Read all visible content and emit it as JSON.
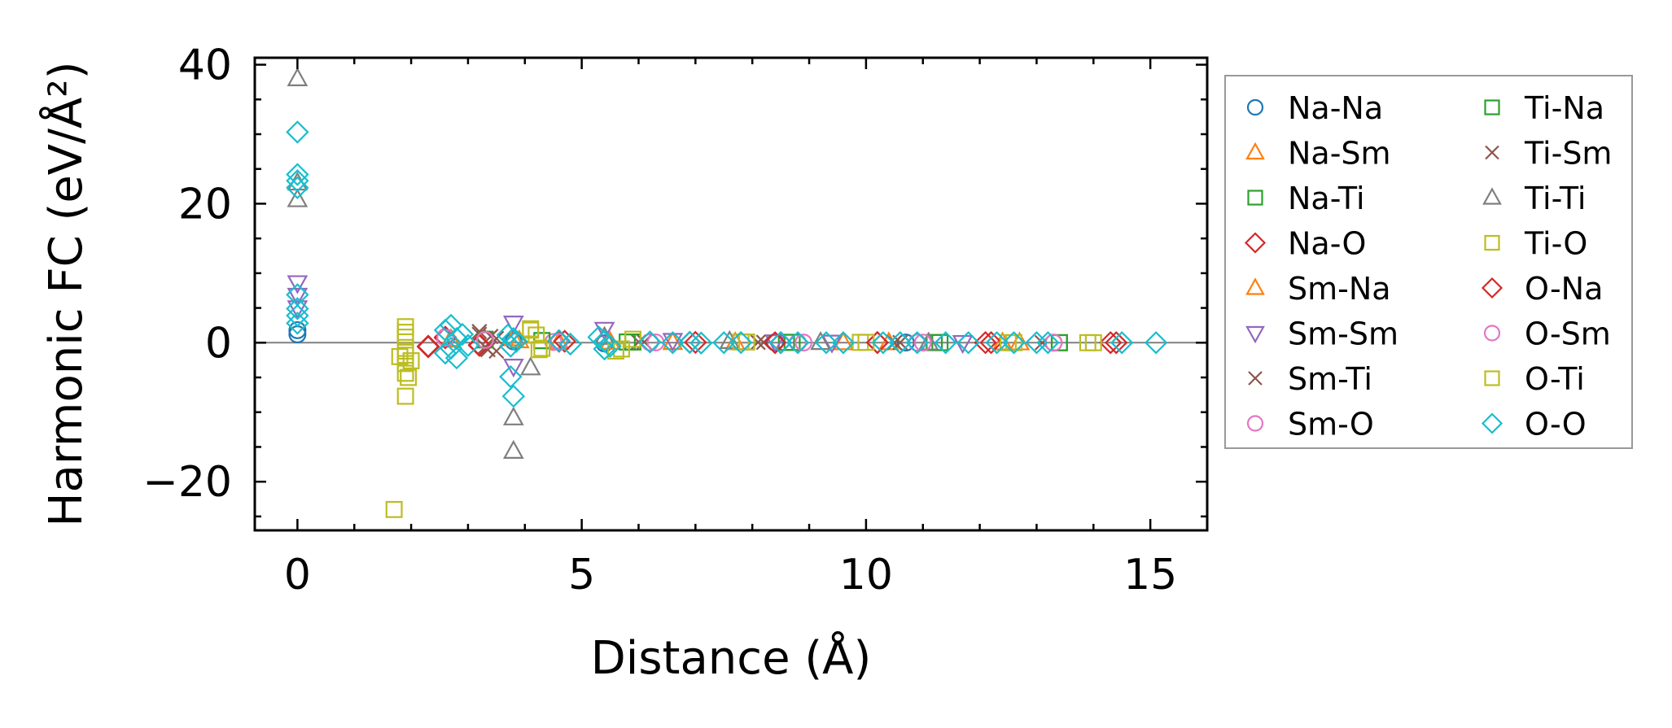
{
  "chart_data": {
    "type": "scatter",
    "title": "",
    "xlabel": "Distance (Å)",
    "ylabel": "Harmonic FC (eV/Å²)",
    "xlim": [
      -0.75,
      16
    ],
    "ylim": [
      -27,
      41
    ],
    "xticks": [
      0,
      5,
      10,
      15
    ],
    "yticks": [
      -20,
      0,
      20,
      40
    ],
    "xtick_labels": [
      "0",
      "5",
      "10",
      "15"
    ],
    "ytick_labels": [
      "−20",
      "0",
      "20",
      "40"
    ],
    "zero_line": true,
    "grid": false,
    "legend_position": "right, outside plot",
    "series": [
      {
        "name": "Na-Na",
        "marker": "circle",
        "color": "#1f77b4",
        "x": [
          0,
          0,
          3.8,
          5.4,
          8.4,
          10.7
        ],
        "y": [
          1.2,
          1.8,
          0.2,
          -0.1,
          0.05,
          0.02
        ]
      },
      {
        "name": "Na-Sm",
        "marker": "triangle",
        "color": "#ff7f0e",
        "x": [
          2.7,
          3.8,
          4.6,
          6.6,
          9.6,
          12.4
        ],
        "y": [
          0.4,
          0.6,
          0.1,
          0.05,
          0.02,
          0.0
        ]
      },
      {
        "name": "Na-Ti",
        "marker": "square",
        "color": "#2ca02c",
        "x": [
          3.3,
          4.3,
          5.9,
          8.6,
          11.2,
          13.4
        ],
        "y": [
          0.5,
          0.3,
          0.1,
          0.05,
          0.02,
          0.0
        ]
      },
      {
        "name": "Na-O",
        "marker": "diamond",
        "color": "#d62728",
        "x": [
          2.3,
          2.6,
          3.2,
          4.6,
          6.9,
          8.5,
          10.2,
          12.1,
          14.3
        ],
        "y": [
          -0.5,
          0.8,
          -0.4,
          0.2,
          0.05,
          0.0,
          0.02,
          0.01,
          0.0
        ]
      },
      {
        "name": "Sm-Na",
        "marker": "triangle",
        "color": "#ff7f0e",
        "x": [
          2.7,
          3.9,
          5.5,
          7.7,
          10.4,
          12.7
        ],
        "y": [
          0.5,
          0.3,
          0.1,
          0.04,
          0.02,
          0.0
        ]
      },
      {
        "name": "Sm-Sm",
        "marker": "triangle-down",
        "color": "#9467bd",
        "x": [
          0,
          0,
          0,
          3.8,
          3.8,
          5.4,
          6.6,
          8.4,
          9.4,
          11.7
        ],
        "y": [
          8.6,
          6.8,
          5.0,
          2.8,
          -3.4,
          1.9,
          0.3,
          0.1,
          0.05,
          0.0
        ]
      },
      {
        "name": "Sm-Ti",
        "marker": "x",
        "color": "#8c564b",
        "x": [
          3.2,
          3.3,
          3.4,
          3.5,
          6.0,
          8.1,
          10.6,
          13.1
        ],
        "y": [
          1.6,
          -0.6,
          0.9,
          -1.2,
          0.1,
          0.05,
          0.02,
          0.0
        ]
      },
      {
        "name": "Sm-O",
        "marker": "circle",
        "color": "#e377c2",
        "x": [
          2.6,
          3.3,
          4.5,
          6.2,
          8.8,
          10.9,
          13.3
        ],
        "y": [
          0.8,
          0.4,
          0.1,
          0.05,
          0.02,
          0.01,
          0.0
        ]
      },
      {
        "name": "Ti-Na",
        "marker": "square",
        "color": "#2ca02c",
        "x": [
          3.3,
          4.3,
          5.8,
          8.7,
          11.3,
          13.4
        ],
        "y": [
          0.4,
          0.3,
          0.1,
          0.05,
          0.02,
          0.0
        ]
      },
      {
        "name": "Ti-Sm",
        "marker": "x",
        "color": "#8c564b",
        "x": [
          3.2,
          3.35,
          3.5,
          6.1,
          8.2,
          10.5
        ],
        "y": [
          1.2,
          -1.0,
          0.6,
          0.1,
          0.05,
          0.0
        ]
      },
      {
        "name": "Ti-Ti",
        "marker": "triangle",
        "color": "#7f7f7f",
        "x": [
          0,
          0,
          0,
          3.8,
          3.8,
          4.1,
          5.4,
          7.6,
          9.2,
          11.1
        ],
        "y": [
          38,
          23,
          20.6,
          -10.8,
          -15.6,
          -3.6,
          0.8,
          0.2,
          0.05,
          0.0
        ]
      },
      {
        "name": "Ti-O",
        "marker": "square",
        "color": "#bcbd22",
        "x": [
          1.7,
          1.9,
          1.9,
          1.9,
          1.9,
          1.9,
          1.9,
          2.0,
          4.1,
          4.2,
          4.3,
          5.6,
          5.9,
          7.8,
          9.9,
          12.6,
          14.0
        ],
        "y": [
          -24,
          2.3,
          0.8,
          -1.8,
          -3.0,
          -4.4,
          -7.7,
          -2.6,
          2.0,
          1.1,
          -0.8,
          -1.2,
          0.5,
          0.1,
          0.05,
          0.0,
          0.0
        ]
      },
      {
        "name": "O-Na",
        "marker": "diamond",
        "color": "#d62728",
        "x": [
          2.3,
          2.6,
          3.2,
          4.7,
          7.0,
          8.4,
          10.2,
          12.2,
          14.4
        ],
        "y": [
          -0.6,
          0.7,
          -0.3,
          0.2,
          0.05,
          0.0,
          0.02,
          0.01,
          0.0
        ]
      },
      {
        "name": "O-Sm",
        "marker": "circle",
        "color": "#e377c2",
        "x": [
          2.6,
          3.3,
          4.6,
          6.3,
          8.9,
          11.0,
          13.3
        ],
        "y": [
          0.7,
          0.4,
          0.1,
          0.04,
          0.02,
          0.01,
          0.0
        ]
      },
      {
        "name": "O-Ti",
        "marker": "square",
        "color": "#bcbd22",
        "x": [
          1.8,
          1.9,
          1.9,
          1.95,
          4.1,
          4.25,
          5.7,
          7.9,
          10.0,
          12.5,
          13.9
        ],
        "y": [
          -2.0,
          1.5,
          -1.2,
          -5.0,
          1.8,
          -1.0,
          -0.9,
          0.1,
          0.05,
          0.0,
          0.0
        ]
      },
      {
        "name": "O-O",
        "marker": "diamond",
        "color": "#17becf",
        "x": [
          0,
          0,
          0,
          0,
          0,
          0,
          0,
          0,
          2.6,
          2.6,
          2.7,
          2.7,
          2.8,
          2.8,
          2.9,
          3.0,
          3.7,
          3.75,
          3.75,
          3.8,
          3.8,
          3.85,
          4.6,
          4.8,
          5.3,
          5.4,
          5.4,
          5.5,
          6.2,
          6.6,
          6.9,
          7.1,
          7.5,
          7.8,
          8.5,
          8.8,
          9.3,
          9.6,
          10.3,
          10.6,
          10.9,
          11.4,
          11.8,
          12.3,
          12.6,
          13.0,
          13.2,
          14.5,
          15.1
        ],
        "y": [
          30.3,
          24.2,
          23.3,
          22.3,
          6.9,
          4.9,
          3.9,
          2.8,
          1.8,
          -1.5,
          2.5,
          -0.8,
          0.6,
          -2.2,
          1.2,
          -0.4,
          1.1,
          -0.5,
          -4.9,
          0.6,
          -7.7,
          0.2,
          0.3,
          -0.2,
          0.8,
          -0.9,
          0.2,
          -0.5,
          0.1,
          0.0,
          0.05,
          -0.05,
          0.0,
          0.02,
          0.0,
          0.0,
          0.0,
          0.0,
          0.0,
          0.0,
          0.0,
          0.0,
          0.0,
          0.0,
          0.0,
          0.0,
          0.0,
          0.0,
          0.0
        ]
      }
    ]
  }
}
